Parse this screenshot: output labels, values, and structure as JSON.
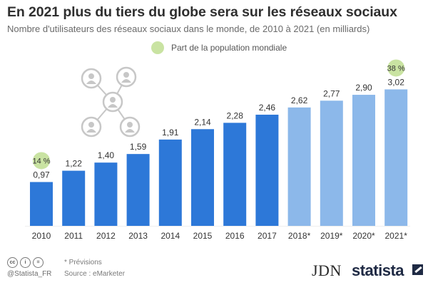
{
  "title": "En 2021 plus du tiers du globe sera sur les réseaux sociaux",
  "subtitle": "Nombre d'utilisateurs des réseaux sociaux dans le monde, de 2010 à 2021 (en milliards)",
  "legend_label": "Part de la population mondiale",
  "footer": {
    "cc_icons": [
      "cc-icon",
      "by-icon",
      "nd-icon"
    ],
    "cc_glyphs": [
      "cc",
      "i",
      "="
    ],
    "handle": "@Statista_FR",
    "note": "* Prévisions",
    "source": "Source : eMarketer",
    "jdn_logo": "JDN",
    "statista_logo": "statista"
  },
  "colors": {
    "actual": "#2d78d8",
    "forecast": "#8cb8ea",
    "share_bubble": "#c9e3a2",
    "gridline": "#eeeeee",
    "network_icon": "#c7c7c7"
  },
  "chart_data": {
    "type": "bar",
    "categories": [
      "2010",
      "2011",
      "2012",
      "2013",
      "2014",
      "2015",
      "2016",
      "2017",
      "2018*",
      "2019*",
      "2020*",
      "2021*"
    ],
    "values": [
      0.97,
      1.22,
      1.4,
      1.59,
      1.91,
      2.14,
      2.28,
      2.46,
      2.62,
      2.77,
      2.9,
      3.02
    ],
    "value_labels": [
      "0,97",
      "1,22",
      "1,40",
      "1,59",
      "1,91",
      "2,14",
      "2,28",
      "2,46",
      "2,62",
      "2,77",
      "2,90",
      "3,02"
    ],
    "forecast": [
      false,
      false,
      false,
      false,
      false,
      false,
      false,
      false,
      true,
      true,
      true,
      true
    ],
    "annotations": [
      {
        "category": "2010",
        "label": "14 %"
      },
      {
        "category": "2021*",
        "label": "38 %"
      }
    ],
    "ylim": [
      0,
      3.5
    ],
    "grid": false,
    "legend": "top-center"
  }
}
